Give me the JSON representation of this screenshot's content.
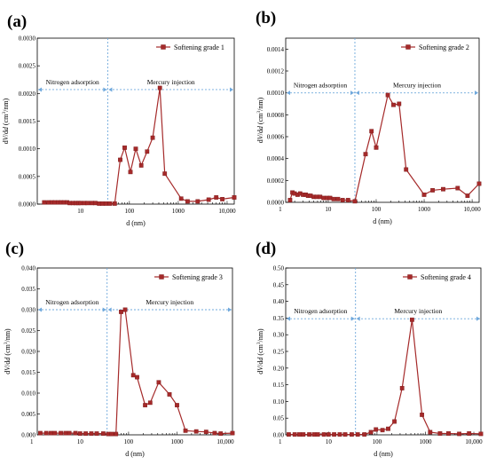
{
  "colors": {
    "series": "#a52a2a",
    "divider": "#6fa8dc"
  },
  "chart_data": [
    {
      "type": "line",
      "panel_label": "(a)",
      "legend": "Softening grade 1",
      "xlabel": "d (nm)",
      "ylabel_parts": [
        "d",
        "V",
        "/d",
        "d",
        " (cm",
        "3",
        "/nm)"
      ],
      "x_scale": "log",
      "xlim": [
        1.3,
        14000
      ],
      "ylim": [
        0,
        0.003
      ],
      "xticks": [
        {
          "v": 10,
          "t": "10"
        },
        {
          "v": 100,
          "t": "100"
        },
        {
          "v": 1000,
          "t": "1000"
        },
        {
          "v": 10000,
          "t": "10,000"
        }
      ],
      "yticks": [
        {
          "v": 0,
          "t": "0.0000"
        },
        {
          "v": 0.0005,
          "t": "0.0005"
        },
        {
          "v": 0.001,
          "t": "0.0010"
        },
        {
          "v": 0.0015,
          "t": "0.0015"
        },
        {
          "v": 0.002,
          "t": "0.0020"
        },
        {
          "v": 0.0025,
          "t": "0.0025"
        },
        {
          "v": 0.003,
          "t": "0.0030"
        }
      ],
      "divider_x": 36,
      "region_y": 0.00207,
      "region_labels": [
        "Nitrogen adsorption",
        "Mercury injection"
      ],
      "x": [
        1.8,
        2.2,
        2.6,
        3,
        3.5,
        4,
        4.6,
        5.3,
        6,
        7,
        8,
        9,
        10,
        12,
        14,
        17,
        20,
        24,
        28,
        33,
        40,
        50,
        65,
        80,
        105,
        135,
        175,
        230,
        300,
        420,
        530,
        1150,
        1550,
        2500,
        4200,
        6000,
        8000,
        14000
      ],
      "y": [
        3e-05,
        3e-05,
        3e-05,
        3e-05,
        3e-05,
        3e-05,
        3e-05,
        3e-05,
        2e-05,
        2e-05,
        2e-05,
        2e-05,
        2e-05,
        2e-05,
        2e-05,
        2e-05,
        2e-05,
        1e-05,
        1e-05,
        1e-05,
        1e-05,
        1e-05,
        0.0008,
        0.00102,
        0.00058,
        0.001,
        0.0007,
        0.00095,
        0.0012,
        0.0021,
        0.00055,
        0.0001,
        5e-05,
        5e-05,
        8e-05,
        0.00012,
        9e-05,
        0.00012
      ]
    },
    {
      "type": "line",
      "panel_label": "(b)",
      "legend": "Softening grade 2",
      "xlabel": "d (nm)",
      "ylabel_parts": [
        "d",
        "V",
        "/d",
        "d",
        " (cm",
        "3",
        "/nm)"
      ],
      "x_scale": "log",
      "xlim": [
        1.3,
        14000
      ],
      "ylim": [
        0,
        0.0015
      ],
      "xticks": [
        {
          "v": 1,
          "t": "1"
        },
        {
          "v": 10,
          "t": "10"
        },
        {
          "v": 100,
          "t": "100"
        },
        {
          "v": 1000,
          "t": "1000"
        },
        {
          "v": 10000,
          "t": "10,000"
        }
      ],
      "yticks": [
        {
          "v": 0,
          "t": "0.0000"
        },
        {
          "v": 0.0002,
          "t": "0.0002"
        },
        {
          "v": 0.0004,
          "t": "0.0004"
        },
        {
          "v": 0.0006,
          "t": "0.0006"
        },
        {
          "v": 0.0008,
          "t": "0.0008"
        },
        {
          "v": 0.001,
          "t": "0.0010"
        },
        {
          "v": 0.0012,
          "t": "0.0012"
        },
        {
          "v": 0.0014,
          "t": "0.0014"
        }
      ],
      "divider_x": 36,
      "region_y": 0.001,
      "region_labels": [
        "Nitrogen adsorption",
        "Mercury injection"
      ],
      "x": [
        1.6,
        1.8,
        2,
        2.3,
        2.6,
        3,
        3.4,
        3.8,
        4.3,
        5,
        5.8,
        6.8,
        8,
        9.5,
        11,
        13,
        16,
        20,
        26,
        36,
        60,
        80,
        100,
        175,
        230,
        300,
        420,
        1000,
        1500,
        2500,
        5000,
        8000,
        14000
      ],
      "y": [
        2e-05,
        9e-05,
        8e-05,
        7e-05,
        8e-05,
        7e-05,
        7e-05,
        6e-05,
        6e-05,
        5e-05,
        5e-05,
        5e-05,
        4e-05,
        4e-05,
        4e-05,
        3e-05,
        3e-05,
        2e-05,
        2e-05,
        1e-05,
        0.00044,
        0.00065,
        0.0005,
        0.00098,
        0.00089,
        0.0009,
        0.0003,
        7e-05,
        0.00011,
        0.00012,
        0.00013,
        6e-05,
        0.00017
      ]
    },
    {
      "type": "line",
      "panel_label": "(c)",
      "legend": "Softening grade 3",
      "xlabel": "d (nm)",
      "ylabel_parts": [
        "d",
        "V",
        "/d",
        "d",
        " (cm",
        "3",
        "/nm)"
      ],
      "x_scale": "log",
      "xlim": [
        1.3,
        14000
      ],
      "ylim": [
        0,
        0.04
      ],
      "xticks": [
        {
          "v": 1,
          "t": "1"
        },
        {
          "v": 10,
          "t": "10"
        },
        {
          "v": 100,
          "t": "100"
        },
        {
          "v": 1000,
          "t": "1000"
        },
        {
          "v": 10000,
          "t": "10,000"
        }
      ],
      "yticks": [
        {
          "v": 0,
          "t": "0.000"
        },
        {
          "v": 0.005,
          "t": "0.005"
        },
        {
          "v": 0.01,
          "t": "0.010"
        },
        {
          "v": 0.015,
          "t": "0.015"
        },
        {
          "v": 0.02,
          "t": "0.020"
        },
        {
          "v": 0.025,
          "t": "0.025"
        },
        {
          "v": 0.03,
          "t": "0.030"
        },
        {
          "v": 0.035,
          "t": "0.035"
        },
        {
          "v": 0.04,
          "t": "0.040"
        }
      ],
      "divider_x": 36,
      "region_y": 0.03,
      "region_labels": [
        "Nitrogen adsorption",
        "Mercury injection"
      ],
      "x": [
        1.5,
        2,
        2.5,
        3,
        4,
        5,
        6,
        8,
        10,
        13,
        17,
        22,
        30,
        38,
        45,
        55,
        70,
        85,
        125,
        150,
        220,
        280,
        420,
        700,
        1000,
        1500,
        2500,
        4000,
        6000,
        8000,
        14000
      ],
      "y": [
        0.0004,
        0.0004,
        0.0004,
        0.0004,
        0.0004,
        0.0004,
        0.0004,
        0.0004,
        0.0003,
        0.0003,
        0.0003,
        0.0003,
        0.0003,
        0.0002,
        0.0002,
        0.0002,
        0.0295,
        0.03,
        0.0143,
        0.0138,
        0.0071,
        0.0077,
        0.0126,
        0.0097,
        0.0071,
        0.001,
        0.0008,
        0.0007,
        0.0004,
        0.0003,
        0.0004
      ]
    },
    {
      "type": "line",
      "panel_label": "(d)",
      "legend": "Softening grade 4",
      "xlabel": "d (nm)",
      "ylabel_parts": [
        "d",
        "V",
        "/d",
        "d",
        " (cm",
        "3",
        "/nm)"
      ],
      "x_scale": "log",
      "xlim": [
        1.3,
        14000
      ],
      "ylim": [
        0,
        0.5
      ],
      "xticks": [
        {
          "v": 1,
          "t": "1"
        },
        {
          "v": 10,
          "t": "10"
        },
        {
          "v": 100,
          "t": "100"
        },
        {
          "v": 1000,
          "t": "1000"
        },
        {
          "v": 10000,
          "t": "10,000"
        }
      ],
      "yticks": [
        {
          "v": 0,
          "t": "0.00"
        },
        {
          "v": 0.05,
          "t": "0.05"
        },
        {
          "v": 0.1,
          "t": "0.10"
        },
        {
          "v": 0.15,
          "t": "0.15"
        },
        {
          "v": 0.2,
          "t": "0.20"
        },
        {
          "v": 0.25,
          "t": "0.25"
        },
        {
          "v": 0.3,
          "t": "0.30"
        },
        {
          "v": 0.35,
          "t": "0.35"
        },
        {
          "v": 0.4,
          "t": "0.40"
        },
        {
          "v": 0.45,
          "t": "0.45"
        },
        {
          "v": 0.5,
          "t": "0.50"
        }
      ],
      "divider_x": 36,
      "region_y": 0.348,
      "region_labels": [
        "Nitrogen adsorption",
        "Mercury injection"
      ],
      "x": [
        1.5,
        2,
        2.5,
        3,
        4,
        5,
        6,
        8,
        10,
        13,
        17,
        22,
        30,
        40,
        55,
        75,
        95,
        130,
        170,
        230,
        330,
        530,
        850,
        1250,
        2000,
        3000,
        5000,
        8000,
        14000
      ],
      "y": [
        0.001,
        0.001,
        0.001,
        0.001,
        0.001,
        0.001,
        0.001,
        0.001,
        0.001,
        0.001,
        0.001,
        0.001,
        0.001,
        0.001,
        0.001,
        0.008,
        0.016,
        0.014,
        0.018,
        0.04,
        0.14,
        0.345,
        0.06,
        0.008,
        0.004,
        0.004,
        0.003,
        0.004,
        0.003
      ]
    }
  ]
}
